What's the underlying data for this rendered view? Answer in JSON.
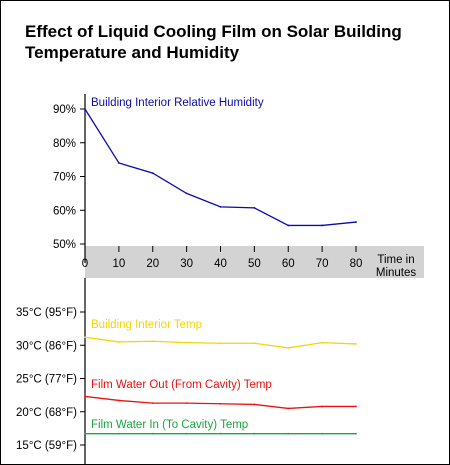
{
  "title_line1": "Effect of Liquid Cooling Film on Solar Building",
  "title_line2": "Temperature and Humidity",
  "chart_data": [
    {
      "type": "line",
      "x": [
        0,
        10,
        20,
        30,
        40,
        50,
        60,
        70,
        80
      ],
      "x_ticks": [
        "0",
        "10",
        "20",
        "30",
        "40",
        "50",
        "60",
        "70",
        "80"
      ],
      "xlabel_line1": "Time in",
      "xlabel_line2": "Minutes",
      "y_ticks": [
        "90%",
        "80%",
        "70%",
        "60%",
        "50%"
      ],
      "ylim": [
        50,
        90
      ],
      "series": [
        {
          "name": "Building Interior Relative Humidity",
          "color": "#0b0bb0",
          "values": [
            90,
            74,
            71,
            65,
            61,
            60.7,
            55.5,
            55.5,
            56.5
          ]
        }
      ]
    },
    {
      "type": "line",
      "x": [
        0,
        10,
        20,
        30,
        40,
        50,
        60,
        70,
        80
      ],
      "y_ticks": [
        "35°C (95°F)",
        "30°C (86°F)",
        "25°C (77°F)",
        "20°C (68°F)",
        "15°C (59°F)"
      ],
      "ylim": [
        15,
        35
      ],
      "series": [
        {
          "name": "Building Interior Temp",
          "color": "#f5d40a",
          "values": [
            31.2,
            30.5,
            30.6,
            30.4,
            30.3,
            30.3,
            29.6,
            30.4,
            30.2
          ]
        },
        {
          "name": "Film Water Out (From Cavity) Temp",
          "color": "#ee1111",
          "values": [
            22.3,
            21.7,
            21.3,
            21.3,
            21.2,
            21.1,
            20.5,
            20.8,
            20.8
          ]
        },
        {
          "name": "Film Water In (To Cavity) Temp",
          "color": "#1aa640",
          "values": [
            16.7,
            16.7,
            16.7,
            16.7,
            16.7,
            16.7,
            16.7,
            16.7,
            16.7
          ]
        }
      ]
    }
  ]
}
